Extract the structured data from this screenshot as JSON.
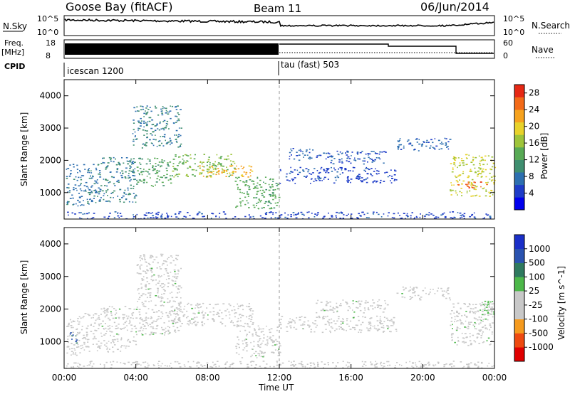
{
  "header": {
    "station": "Goose Bay (fitACF)",
    "beam": "Beam 11",
    "date": "06/Jun/2014"
  },
  "strips": {
    "nsky_label": "N.Sky",
    "nsky_ticks": [
      "10^5",
      "10^0"
    ],
    "nsearch_label": "N.Search",
    "nsearch_ticks": [
      "10^5",
      "10^0"
    ],
    "freq_label": "Freq.",
    "freq_unit": "[MHz]",
    "freq_ticks": [
      "18",
      "8"
    ],
    "nave_label": "Nave",
    "nave_ticks": [
      "60",
      "0"
    ],
    "cpid_label": "CPID",
    "cpid_modes": [
      {
        "name": "icescan 1200",
        "start_hour": 0,
        "end_hour": 12
      },
      {
        "name": "tau (fast) 503",
        "start_hour": 12,
        "end_hour": 24
      }
    ]
  },
  "x_axis": {
    "label": "Time UT",
    "ticks": [
      "00:00",
      "04:00",
      "08:00",
      "12:00",
      "16:00",
      "20:00",
      "00:00"
    ],
    "range_hours": [
      0,
      24
    ]
  },
  "chart_data": [
    {
      "type": "heatmap",
      "name": "power-panel",
      "ylabel": "Slant Range [km]",
      "yticks": [
        "4000",
        "3000",
        "2000",
        "1000"
      ],
      "yrange": [
        180,
        4500
      ],
      "colorbar": {
        "label": "Power [dB]",
        "ticks": [
          "28",
          "24",
          "20",
          "16",
          "12",
          "8",
          "4"
        ],
        "range": [
          0,
          30
        ],
        "colors": [
          "#0000ee",
          "#1e3cc8",
          "#2d6fb0",
          "#3f8f70",
          "#58aa55",
          "#9ec43a",
          "#e8d22a",
          "#f6a21e",
          "#f36a18",
          "#e62814"
        ]
      },
      "regions": [
        {
          "t0": 0.1,
          "t1": 2.0,
          "r0": 600,
          "r1": 1900,
          "value": 8
        },
        {
          "t0": 2.0,
          "t1": 4.0,
          "r0": 700,
          "r1": 2100,
          "value": 9
        },
        {
          "t0": 4.0,
          "t1": 6.0,
          "r0": 1200,
          "r1": 2100,
          "value": 12
        },
        {
          "t0": 3.8,
          "t1": 6.5,
          "r0": 2400,
          "r1": 3700,
          "value": 9
        },
        {
          "t0": 6.0,
          "t1": 9.5,
          "r0": 1500,
          "r1": 2200,
          "value": 15
        },
        {
          "t0": 7.5,
          "t1": 10.5,
          "r0": 1500,
          "r1": 1850,
          "value": 22
        },
        {
          "t0": 9.5,
          "t1": 12.0,
          "r0": 500,
          "r1": 1500,
          "value": 13
        },
        {
          "t0": 12.0,
          "t1": 18.5,
          "r0": 1300,
          "r1": 1800,
          "value": 5
        },
        {
          "t0": 12.5,
          "t1": 14.0,
          "r0": 2000,
          "r1": 2400,
          "value": 7
        },
        {
          "t0": 14.0,
          "t1": 18.0,
          "r0": 1900,
          "r1": 2300,
          "value": 6
        },
        {
          "t0": 18.5,
          "t1": 21.5,
          "r0": 2300,
          "r1": 2700,
          "value": 7
        },
        {
          "t0": 21.5,
          "t1": 24.0,
          "r0": 900,
          "r1": 2200,
          "value": 18
        },
        {
          "t0": 21.8,
          "t1": 24.0,
          "r0": 1150,
          "r1": 1350,
          "value": 26
        },
        {
          "t0": 0.0,
          "t1": 24.0,
          "r0": 200,
          "r1": 420,
          "value": 5
        }
      ]
    },
    {
      "type": "heatmap",
      "name": "velocity-panel",
      "ylabel": "Slant Range [km]",
      "yticks": [
        "4000",
        "3000",
        "2000",
        "1000"
      ],
      "yrange": [
        180,
        4500
      ],
      "colorbar": {
        "label": "Velocity [m s^-1]",
        "ticks": [
          "1000",
          "500",
          "100",
          "25",
          "-25",
          "-100",
          "-500",
          "-1000"
        ],
        "range": [
          -1200,
          1200
        ],
        "colors": [
          "#e00000",
          "#ee4a10",
          "#f59a1e",
          "#c8c8c8",
          "#c8c8c8",
          "#4db84a",
          "#2f7a5f",
          "#2a53b0",
          "#1a2fc8"
        ]
      },
      "regions": [
        {
          "t0": 0.1,
          "t1": 2.0,
          "r0": 600,
          "r1": 1900,
          "value": 0
        },
        {
          "t0": 0.1,
          "t1": 0.7,
          "r0": 950,
          "r1": 1350,
          "value": 700
        },
        {
          "t0": 2.0,
          "t1": 4.0,
          "r0": 700,
          "r1": 2100,
          "value": 0
        },
        {
          "t0": 4.0,
          "t1": 6.5,
          "r0": 1200,
          "r1": 3700,
          "value": 0
        },
        {
          "t0": 6.0,
          "t1": 10.5,
          "r0": 1500,
          "r1": 2200,
          "value": 0
        },
        {
          "t0": 9.5,
          "t1": 12.0,
          "r0": 500,
          "r1": 1500,
          "value": 0
        },
        {
          "t0": 12.0,
          "t1": 18.5,
          "r0": 1300,
          "r1": 1800,
          "value": 0
        },
        {
          "t0": 14.0,
          "t1": 18.0,
          "r0": 1900,
          "r1": 2300,
          "value": 0
        },
        {
          "t0": 18.5,
          "t1": 21.5,
          "r0": 2300,
          "r1": 2700,
          "value": 0
        },
        {
          "t0": 21.5,
          "t1": 24.0,
          "r0": 900,
          "r1": 2200,
          "value": 0
        },
        {
          "t0": 23.0,
          "t1": 24.0,
          "r0": 1800,
          "r1": 2300,
          "value": 200
        },
        {
          "t0": 0.0,
          "t1": 24.0,
          "r0": 200,
          "r1": 420,
          "value": -60
        }
      ]
    }
  ]
}
